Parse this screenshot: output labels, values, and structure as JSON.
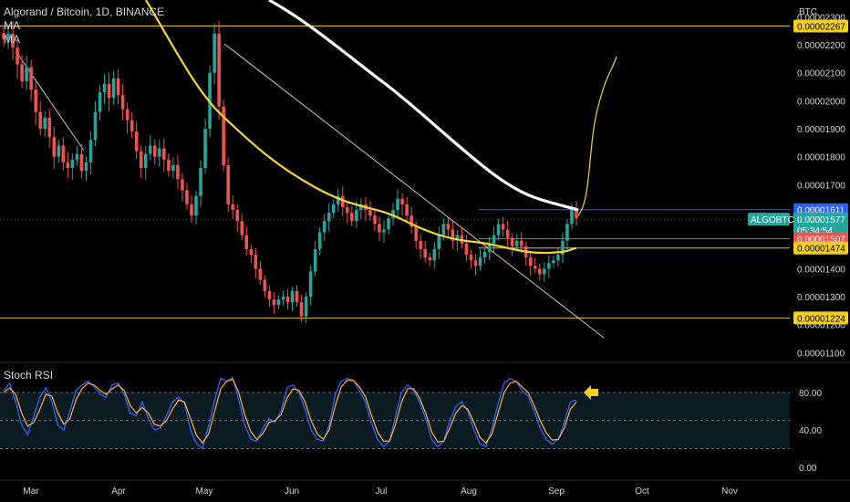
{
  "legend": {
    "title": "Algorand / Bitcoin, 1D, BINANCE",
    "ma1": "MA",
    "ma2": "MA"
  },
  "rsi_title": "Stoch RSI",
  "colors": {
    "up": "#26a69a",
    "down": "#ef5350",
    "ma_white": "#ffffff",
    "ma_yellow": "#f0d43a",
    "hline": "#e2c32b",
    "trend": "#c8c8c8",
    "stoch_k": "#2962ff",
    "stoch_d": "#f5a623",
    "rsi_band": "#0b1b22",
    "arrow": "#f5d020"
  },
  "chart_data": {
    "type": "candlestick",
    "symbol": "ALGOBTC",
    "currency": "BTC",
    "x_ticks": [
      "Mar",
      "Apr",
      "May",
      "Jun",
      "Jul",
      "Aug",
      "Sep",
      "Oct",
      "Nov"
    ],
    "y_ticks": [
      "0.00002300",
      "0.00002200",
      "0.00002100",
      "0.00002000",
      "0.00001900",
      "0.00001800",
      "0.00001700",
      "0.00001600",
      "0.00001500",
      "0.00001400",
      "0.00001300",
      "0.00001200",
      "0.00001100"
    ],
    "ylim": [
      1.072e-05,
      2.36e-05
    ],
    "rsi_ticks": [
      "80.00",
      "40.00",
      "0.00"
    ],
    "price_tags": [
      {
        "text": "0.00002267",
        "value": 2.267e-05,
        "bg": "#f5d020",
        "fg": "#000000"
      },
      {
        "text": "0.00001611",
        "value": 1.611e-05,
        "bg": "#2962ff",
        "fg": "#ffffff"
      },
      {
        "text": "0.00001577",
        "value": 1.577e-05,
        "bg": "#26a69a",
        "fg": "#ffffff"
      },
      {
        "text": "05:34:54",
        "value": 1.538e-05,
        "bg": "#26a69a",
        "fg": "#ffffff"
      },
      {
        "text": "0.00001507",
        "value": 1.507e-05,
        "bg": "#ef5350",
        "fg": "#ffffff"
      },
      {
        "text": "0.00001474",
        "value": 1.474e-05,
        "bg": "#f5d020",
        "fg": "#000000"
      },
      {
        "text": "0.00001224",
        "value": 1.224e-05,
        "bg": "#f5d020",
        "fg": "#000000"
      }
    ],
    "symbol_label": "ALGOBTC",
    "horizontal_lines": [
      {
        "value": 2.267e-05,
        "color": "#e2c32b"
      },
      {
        "value": 1.611e-05,
        "color": "#2962ff"
      },
      {
        "value": 1.507e-05,
        "color": "#ef5350"
      },
      {
        "value": 1.474e-05,
        "color": "#e2c32b"
      },
      {
        "value": 1.224e-05,
        "color": "#e2c32b"
      }
    ],
    "closes": [
      2.22e-05,
      2.24e-05,
      2.19e-05,
      2.13e-05,
      2.07e-05,
      2.12e-05,
      2.04e-05,
      1.96e-05,
      1.9e-05,
      1.94e-05,
      1.87e-05,
      1.8e-05,
      1.84e-05,
      1.78e-05,
      1.76e-05,
      1.79e-05,
      1.81e-05,
      1.75e-05,
      1.78e-05,
      1.86e-05,
      1.96e-05,
      2.03e-05,
      2.06e-05,
      2.01e-05,
      2.08e-05,
      2.02e-05,
      1.97e-05,
      1.93e-05,
      1.89e-05,
      1.82e-05,
      1.76e-05,
      1.81e-05,
      1.84e-05,
      1.8e-05,
      1.83e-05,
      1.79e-05,
      1.75e-05,
      1.77e-05,
      1.72e-05,
      1.68e-05,
      1.63e-05,
      1.59e-05,
      1.66e-05,
      1.76e-05,
      1.9e-05,
      2.1e-05,
      2.24e-05,
      1.98e-05,
      1.77e-05,
      1.63e-05,
      1.61e-05,
      1.57e-05,
      1.52e-05,
      1.47e-05,
      1.45e-05,
      1.4e-05,
      1.36e-05,
      1.32e-05,
      1.29e-05,
      1.27e-05,
      1.29e-05,
      1.3e-05,
      1.28e-05,
      1.32e-05,
      1.28e-05,
      1.23e-05,
      1.3e-05,
      1.39e-05,
      1.47e-05,
      1.53e-05,
      1.57e-05,
      1.6e-05,
      1.63e-05,
      1.66e-05,
      1.62e-05,
      1.6e-05,
      1.57e-05,
      1.61e-05,
      1.63e-05,
      1.61e-05,
      1.59e-05,
      1.56e-05,
      1.53e-05,
      1.54e-05,
      1.58e-05,
      1.61e-05,
      1.65e-05,
      1.63e-05,
      1.59e-05,
      1.55e-05,
      1.5e-05,
      1.47e-05,
      1.44e-05,
      1.43e-05,
      1.47e-05,
      1.52e-05,
      1.56e-05,
      1.54e-05,
      1.5e-05,
      1.52e-05,
      1.49e-05,
      1.45e-05,
      1.43e-05,
      1.41e-05,
      1.44e-05,
      1.46e-05,
      1.49e-05,
      1.52e-05,
      1.56e-05,
      1.54e-05,
      1.51e-05,
      1.48e-05,
      1.5e-05,
      1.48e-05,
      1.44e-05,
      1.41e-05,
      1.4e-05,
      1.38e-05,
      1.4e-05,
      1.42e-05,
      1.43e-05,
      1.45e-05,
      1.5e-05,
      1.56e-05,
      1.61e-05,
      1.58e-05
    ],
    "ma_white": [
      [
        2.4e-05,
        300
      ],
      [
        2.31e-05,
        350
      ],
      [
        2.21e-05,
        400
      ],
      [
        2.11e-05,
        460
      ],
      [
        2e-05,
        500
      ],
      [
        1.88e-05,
        540
      ],
      [
        1.8e-05,
        580
      ],
      [
        1.72e-05,
        620
      ],
      [
        1.68e-05,
        634
      ]
    ],
    "ma_yellow_anchor": "path",
    "projection": "up",
    "stoch_k": [
      82,
      90,
      70,
      45,
      35,
      55,
      75,
      85,
      70,
      45,
      40,
      60,
      82,
      88,
      92,
      86,
      78,
      75,
      88,
      90,
      78,
      58,
      55,
      70,
      52,
      40,
      42,
      55,
      70,
      75,
      68,
      40,
      25,
      20,
      45,
      72,
      95,
      92,
      96,
      72,
      45,
      30,
      28,
      42,
      52,
      48,
      60,
      85,
      88,
      80,
      62,
      40,
      30,
      28,
      45,
      78,
      92,
      95,
      93,
      82,
      70,
      48,
      30,
      22,
      28,
      55,
      80,
      88,
      82,
      70,
      52,
      30,
      22,
      28,
      50,
      65,
      70,
      60,
      40,
      25,
      22,
      42,
      68,
      90,
      95,
      92,
      82,
      76,
      60,
      42,
      30,
      25,
      30,
      48,
      70,
      72
    ],
    "stoch_d": [
      80,
      85,
      78,
      58,
      44,
      48,
      62,
      78,
      76,
      58,
      46,
      52,
      72,
      84,
      90,
      88,
      82,
      78,
      84,
      88,
      82,
      66,
      58,
      64,
      58,
      46,
      44,
      50,
      62,
      72,
      70,
      52,
      34,
      26,
      36,
      60,
      84,
      92,
      94,
      80,
      56,
      38,
      30,
      36,
      48,
      50,
      56,
      74,
      84,
      82,
      70,
      50,
      36,
      30,
      40,
      66,
      86,
      93,
      93,
      86,
      76,
      56,
      38,
      28,
      28,
      46,
      70,
      84,
      84,
      74,
      58,
      38,
      27,
      28,
      42,
      58,
      66,
      62,
      48,
      32,
      26,
      36,
      58,
      80,
      90,
      92,
      86,
      80,
      66,
      50,
      37,
      29,
      30,
      42,
      62,
      70
    ]
  }
}
